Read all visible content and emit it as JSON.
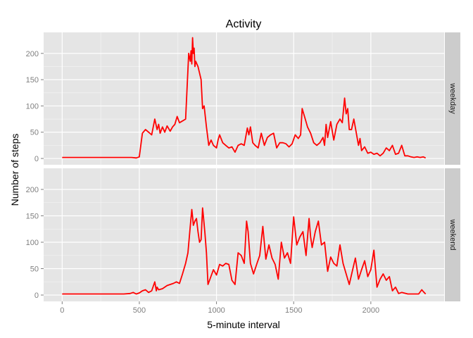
{
  "chart_data": {
    "type": "line",
    "title": "Activity",
    "xlabel": "5-minute interval",
    "ylabel": "Number of steps",
    "xlim": [
      -120,
      2475
    ],
    "ylim": [
      -12,
      240
    ],
    "x_ticks": [
      0,
      500,
      1000,
      1500,
      2000
    ],
    "x_tick_labels": [
      "0",
      "500",
      "1000",
      "1500",
      "2000"
    ],
    "y_ticks": [
      0,
      50,
      100,
      150,
      200
    ],
    "y_tick_labels": [
      "0",
      "50",
      "100",
      "150",
      "200"
    ],
    "grid": true,
    "line_color": "#ff0000",
    "panel_background": "#e5e5e5",
    "strip_background": "#cccccc",
    "panels": [
      {
        "label": "weekday",
        "x": [
          0,
          400,
          450,
          480,
          500,
          520,
          540,
          560,
          580,
          600,
          615,
          625,
          635,
          650,
          665,
          680,
          700,
          715,
          730,
          745,
          760,
          800,
          820,
          830,
          835,
          840,
          845,
          850,
          855,
          860,
          865,
          880,
          900,
          910,
          920,
          935,
          950,
          965,
          980,
          1000,
          1010,
          1020,
          1040,
          1060,
          1080,
          1100,
          1120,
          1140,
          1160,
          1180,
          1200,
          1210,
          1220,
          1235,
          1250,
          1270,
          1290,
          1310,
          1330,
          1350,
          1370,
          1390,
          1410,
          1430,
          1450,
          1470,
          1490,
          1510,
          1530,
          1545,
          1555,
          1570,
          1590,
          1610,
          1630,
          1650,
          1670,
          1690,
          1700,
          1710,
          1720,
          1740,
          1760,
          1780,
          1800,
          1815,
          1830,
          1840,
          1850,
          1860,
          1875,
          1890,
          1905,
          1920,
          1930,
          1940,
          1960,
          1980,
          2000,
          2020,
          2040,
          2060,
          2080,
          2100,
          2120,
          2140,
          2160,
          2180,
          2200,
          2220,
          2240,
          2260,
          2280,
          2300,
          2320,
          2340,
          2355
        ],
        "y": [
          2,
          2,
          2,
          1,
          3,
          48,
          55,
          50,
          45,
          75,
          55,
          65,
          48,
          60,
          50,
          62,
          52,
          60,
          65,
          80,
          68,
          75,
          200,
          185,
          205,
          180,
          230,
          200,
          210,
          175,
          185,
          175,
          150,
          95,
          100,
          60,
          25,
          35,
          25,
          20,
          35,
          45,
          30,
          25,
          20,
          22,
          12,
          25,
          28,
          25,
          58,
          45,
          60,
          30,
          25,
          20,
          48,
          25,
          40,
          45,
          48,
          20,
          30,
          30,
          28,
          22,
          28,
          45,
          38,
          45,
          95,
          80,
          60,
          48,
          30,
          25,
          30,
          40,
          25,
          65,
          40,
          70,
          35,
          65,
          75,
          68,
          115,
          85,
          95,
          55,
          55,
          75,
          50,
          25,
          38,
          15,
          22,
          10,
          12,
          8,
          10,
          5,
          10,
          20,
          15,
          25,
          8,
          10,
          25,
          5,
          5,
          3,
          2,
          3,
          2,
          3,
          1
        ]
      },
      {
        "label": "weekend",
        "x": [
          0,
          200,
          400,
          440,
          460,
          480,
          500,
          520,
          540,
          560,
          580,
          600,
          610,
          615,
          625,
          650,
          680,
          700,
          720,
          740,
          760,
          780,
          800,
          815,
          830,
          840,
          845,
          850,
          860,
          870,
          880,
          890,
          900,
          910,
          915,
          925,
          935,
          945,
          960,
          980,
          1000,
          1020,
          1040,
          1060,
          1080,
          1100,
          1120,
          1140,
          1160,
          1180,
          1195,
          1205,
          1220,
          1240,
          1260,
          1280,
          1300,
          1320,
          1340,
          1360,
          1380,
          1400,
          1420,
          1440,
          1460,
          1480,
          1500,
          1520,
          1540,
          1560,
          1580,
          1600,
          1610,
          1620,
          1640,
          1660,
          1680,
          1700,
          1720,
          1740,
          1760,
          1780,
          1800,
          1820,
          1840,
          1860,
          1880,
          1900,
          1920,
          1940,
          1960,
          1980,
          2000,
          2020,
          2040,
          2060,
          2080,
          2100,
          2120,
          2140,
          2160,
          2180,
          2200,
          2240,
          2280,
          2310,
          2330,
          2345,
          2355
        ],
        "y": [
          2,
          2,
          2,
          3,
          5,
          2,
          4,
          8,
          10,
          5,
          8,
          25,
          8,
          15,
          10,
          12,
          18,
          20,
          22,
          25,
          22,
          40,
          60,
          80,
          130,
          162,
          148,
          132,
          140,
          145,
          120,
          100,
          105,
          165,
          150,
          118,
          80,
          20,
          32,
          48,
          38,
          58,
          55,
          60,
          58,
          28,
          20,
          80,
          75,
          60,
          140,
          120,
          60,
          40,
          58,
          75,
          130,
          68,
          95,
          70,
          58,
          30,
          100,
          70,
          80,
          60,
          148,
          95,
          110,
          120,
          75,
          145,
          110,
          90,
          120,
          140,
          95,
          100,
          45,
          72,
          60,
          55,
          95,
          60,
          40,
          20,
          45,
          70,
          30,
          48,
          65,
          35,
          48,
          85,
          15,
          30,
          40,
          28,
          35,
          8,
          15,
          3,
          5,
          2,
          2,
          2,
          10,
          5,
          2
        ]
      }
    ]
  }
}
